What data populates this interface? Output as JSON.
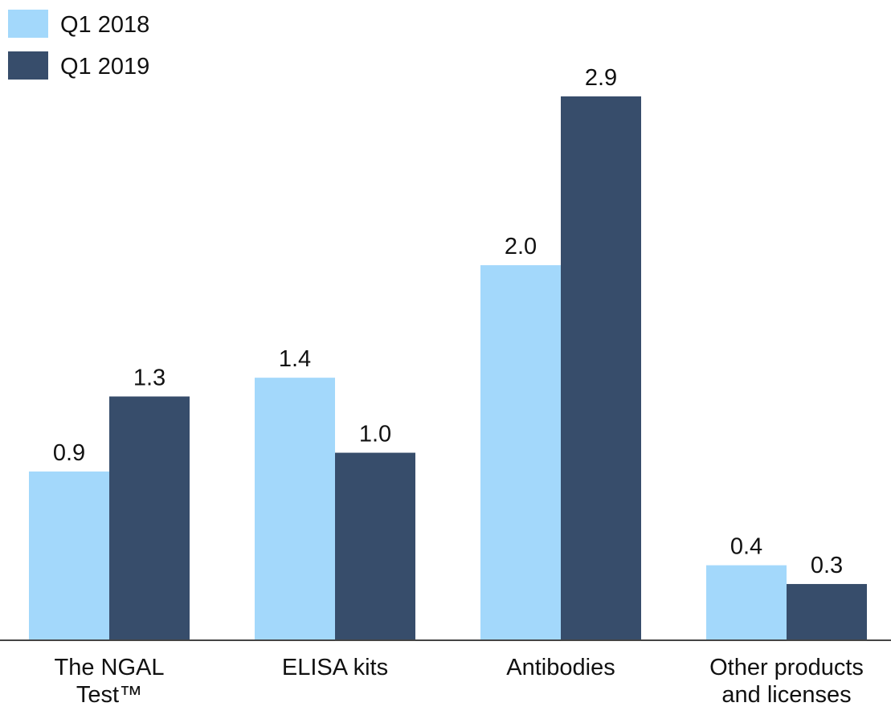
{
  "chart_data": {
    "type": "bar",
    "categories": [
      "The NGAL Test™",
      "ELISA kits",
      "Antibodies",
      "Other products and licenses"
    ],
    "series": [
      {
        "name": "Q1 2018",
        "color": "#a3d8fb",
        "values": [
          0.9,
          1.4,
          2.0,
          0.4
        ],
        "value_labels": [
          "0.9",
          "1.4",
          "2.0",
          "0.4"
        ]
      },
      {
        "name": "Q1 2019",
        "color": "#374d6b",
        "values": [
          1.3,
          1.0,
          2.9,
          0.3
        ],
        "value_labels": [
          "1.3",
          "1.0",
          "2.9",
          "0.3"
        ]
      }
    ],
    "legend": "top-left"
  }
}
